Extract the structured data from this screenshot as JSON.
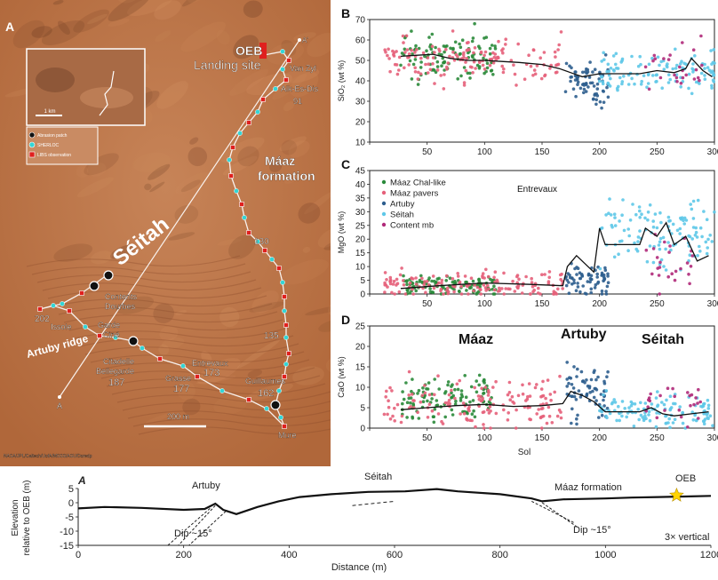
{
  "map": {
    "panel_label": "A",
    "labels": {
      "oeb": "OEB",
      "landing_site": "Landing site",
      "a_prime": "A'",
      "van_zyl": "Van Zyl",
      "alk_es_dis": "Alk-Es-Dis",
      "n91": "91",
      "maaz": "Máaz",
      "formation": "formation",
      "seitah": "Séitah",
      "n130": "130",
      "contents": "Contents",
      "dourbes": "Dourbes",
      "n202": "202",
      "issole": "Issole",
      "garde": "Garde",
      "cine": "Ciné",
      "artuby_ridge": "Artuby ridge",
      "citadelle": "Citadelle",
      "bellegarde": "Bellegarde",
      "n187": "187",
      "entrevaux": "Entrevaux",
      "n173": "173",
      "grasse": "Grasse",
      "n177": "177",
      "n135": "135",
      "guillaumes": "Guillaumes",
      "n162": "162",
      "mure": "Mure",
      "a": "A",
      "scale": "200 m",
      "credit": "NASA/JPL/Caltech/UofA/MSSS/ASU/Doredp",
      "inset_scale": "1 km"
    },
    "legend": [
      {
        "label": "Abrasion patch",
        "color": "#111111"
      },
      {
        "label": "SHERLOC",
        "color": "#33d6d6"
      },
      {
        "label": "LIBS observation",
        "color": "#e0201e"
      }
    ],
    "colors": {
      "terrain": "#b0673a",
      "dark": "#6a3a22",
      "sand": "#c78458",
      "route": "#ffffff"
    }
  },
  "chart_data": [
    {
      "panel": "B",
      "type": "scatter",
      "xlim": [
        0,
        300
      ],
      "ylim": [
        10,
        70
      ],
      "yticks": [
        10,
        20,
        30,
        40,
        50,
        60,
        70
      ],
      "xticks": [
        0,
        50,
        100,
        150,
        200,
        250,
        300
      ],
      "xlabel": "",
      "ylabel": "SiO₂ (wt %)",
      "annotations": [],
      "series": [
        {
          "name": "Máaz Chal-like",
          "color": "#2a8a3a",
          "x_range": [
            27,
            110
          ],
          "y_center": 52,
          "y_spread": 10,
          "count": 110
        },
        {
          "name": "Máaz pavers",
          "color": "#e5607a",
          "x_range": [
            12,
            168
          ],
          "y_center": 50,
          "y_spread": 9,
          "count": 150
        },
        {
          "name": "Artuby",
          "color": "#2d5e8e",
          "x_range": [
            170,
            208
          ],
          "y_center": 40,
          "y_spread": 9,
          "count": 70
        },
        {
          "name": "Séitah",
          "color": "#5ec8e8",
          "x_range": [
            200,
            300
          ],
          "y_center": 44,
          "y_spread": 8,
          "count": 120
        },
        {
          "name": "Content mb",
          "color": "#b02a7a",
          "x_range": [
            240,
            290
          ],
          "y_center": 48,
          "y_spread": 10,
          "count": 25
        }
      ],
      "trend": {
        "x": [
          27,
          40,
          55,
          70,
          85,
          100,
          115,
          130,
          150,
          165,
          175,
          185,
          200,
          215,
          235,
          250,
          265,
          275,
          280,
          290,
          298
        ],
        "y": [
          52,
          52.5,
          53,
          51,
          50,
          50,
          49.5,
          49,
          48,
          46,
          44,
          42,
          43.5,
          43.5,
          43.5,
          45,
          44,
          46,
          51,
          45,
          42
        ]
      }
    },
    {
      "panel": "C",
      "type": "scatter",
      "xlim": [
        0,
        300
      ],
      "ylim": [
        0,
        45
      ],
      "yticks": [
        0,
        5,
        10,
        15,
        20,
        25,
        30,
        35,
        40,
        45
      ],
      "xticks": [
        0,
        50,
        100,
        150,
        200,
        250,
        300
      ],
      "xlabel": "",
      "ylabel": "MgO (wt %)",
      "annotations": [
        "Entrevaux"
      ],
      "series": [
        {
          "name": "Máaz Chal-like",
          "color": "#2a8a3a",
          "x_range": [
            27,
            110
          ],
          "y_center": 3,
          "y_spread": 3,
          "count": 110
        },
        {
          "name": "Máaz pavers",
          "color": "#e5607a",
          "x_range": [
            12,
            168
          ],
          "y_center": 3,
          "y_spread": 4,
          "count": 150
        },
        {
          "name": "Artuby",
          "color": "#2d5e8e",
          "x_range": [
            170,
            208
          ],
          "y_center": 5,
          "y_spread": 5,
          "count": 70
        },
        {
          "name": "Séitah",
          "color": "#5ec8e8",
          "x_range": [
            200,
            300
          ],
          "y_center": 22,
          "y_spread": 10,
          "count": 120
        },
        {
          "name": "Content mb",
          "color": "#b02a7a",
          "x_range": [
            240,
            290
          ],
          "y_center": 12,
          "y_spread": 10,
          "count": 25
        }
      ],
      "trend": {
        "x": [
          27,
          60,
          100,
          140,
          168,
          172,
          180,
          195,
          200,
          205,
          210,
          235,
          240,
          250,
          258,
          265,
          275,
          285,
          295
        ],
        "y": [
          2,
          3,
          4,
          3.5,
          3,
          10,
          14,
          8,
          24,
          18,
          18,
          18,
          24,
          21,
          26,
          18,
          21,
          12,
          14
        ]
      }
    },
    {
      "panel": "D",
      "type": "scatter",
      "xlim": [
        0,
        300
      ],
      "ylim": [
        0,
        25
      ],
      "yticks": [
        0,
        5,
        10,
        15,
        20,
        25
      ],
      "xticks": [
        0,
        50,
        100,
        150,
        200,
        250,
        300
      ],
      "xlabel": "Sol",
      "ylabel": "CaO (wt %)",
      "annotations": [
        "Máaz",
        "Artuby",
        "Séitah"
      ],
      "series": [
        {
          "name": "Máaz Chal-like",
          "color": "#2a8a3a",
          "x_range": [
            27,
            110
          ],
          "y_center": 7,
          "y_spread": 5,
          "count": 110
        },
        {
          "name": "Máaz pavers",
          "color": "#e5607a",
          "x_range": [
            12,
            168
          ],
          "y_center": 6,
          "y_spread": 5,
          "count": 150
        },
        {
          "name": "Artuby",
          "color": "#2d5e8e",
          "x_range": [
            170,
            208
          ],
          "y_center": 9,
          "y_spread": 6,
          "count": 70
        },
        {
          "name": "Séitah",
          "color": "#5ec8e8",
          "x_range": [
            200,
            300
          ],
          "y_center": 4,
          "y_spread": 3,
          "count": 120
        },
        {
          "name": "Content mb",
          "color": "#b02a7a",
          "x_range": [
            240,
            290
          ],
          "y_center": 6,
          "y_spread": 5,
          "count": 25
        }
      ],
      "trend": {
        "x": [
          27,
          50,
          75,
          100,
          125,
          150,
          168,
          175,
          185,
          195,
          205,
          215,
          235,
          245,
          255,
          265,
          280,
          295
        ],
        "y": [
          4.5,
          5,
          5.5,
          5.8,
          5.3,
          5.5,
          6,
          9,
          8,
          6.5,
          4,
          4,
          4,
          5,
          3.5,
          3,
          3.5,
          4
        ]
      }
    },
    {
      "panel": "profile",
      "type": "line",
      "xlim": [
        0,
        1200
      ],
      "ylim": [
        -15,
        5
      ],
      "xticks": [
        0,
        200,
        400,
        600,
        800,
        1000,
        1200
      ],
      "yticks": [
        5,
        0,
        -5,
        -10,
        -15
      ],
      "xlabel": "Distance (m)",
      "ylabel": "Elevation relative to OEB (m)",
      "annotations": [
        "A",
        "Artuby",
        "Séitah",
        "Máaz formation",
        "OEB",
        "Dip ~15°",
        "Dip ~15°",
        "3× vertical"
      ],
      "x": [
        0,
        50,
        120,
        200,
        240,
        260,
        275,
        300,
        340,
        380,
        420,
        480,
        550,
        620,
        680,
        720,
        800,
        860,
        880,
        920,
        1000,
        1050,
        1100,
        1150,
        1200
      ],
      "y": [
        -2,
        -1.5,
        -1.8,
        -2.5,
        -2.2,
        -0.3,
        -2.5,
        -4,
        -1.5,
        0.5,
        2,
        3,
        3.8,
        4,
        4.8,
        4,
        3,
        1.5,
        0.5,
        1.2,
        1.5,
        1.8,
        2,
        2.2,
        2.4
      ]
    }
  ]
}
